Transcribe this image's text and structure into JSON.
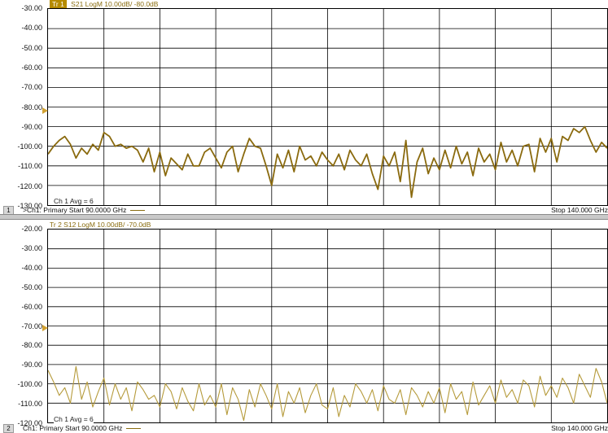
{
  "window": {
    "panes": [
      {
        "number": "1",
        "trace_badge": "Tr 1",
        "trace_label": "S21 LogM 10.00dB/ -80.0dB",
        "y_ticks": [
          "-30.00",
          "-40.00",
          "-50.00",
          "-60.00",
          "-70.00",
          "-80.00",
          "-90.00",
          "-100.00",
          "-110.00",
          "-120.00",
          "-130.00"
        ],
        "reference_marker_value": "-80.00",
        "avg_label": "Ch 1 Avg =",
        "avg_value": "6",
        "channel_info": ">Ch1: Primary  Start  90.0000 GHz",
        "stop_label": "Stop  140.000 GHz"
      },
      {
        "number": "2",
        "trace_badge": "Tr  2",
        "trace_label": "S12 LogM 10.00dB/ -70.0dB",
        "y_ticks": [
          "-20.00",
          "-30.00",
          "-40.00",
          "-50.00",
          "-60.00",
          "-70.00",
          "-80.00",
          "-90.00",
          "-100.00",
          "-110.00",
          "-120.00"
        ],
        "reference_marker_value": "-70.00",
        "avg_label": "Ch 1 Avg =",
        "avg_value": "6",
        "channel_info": "Ch1: Primary  Start  90.0000 GHz",
        "stop_label": "Stop  140.000 GHz"
      }
    ],
    "colors": {
      "trace1": "#8a6a0e",
      "trace2": "#b59a3a",
      "marker": "#d2a233",
      "grid": "#000000"
    }
  },
  "chart_data": [
    {
      "type": "line",
      "title": "S21 LogM 10.00dB/ -80.0dB",
      "x_start_ghz": 90,
      "x_stop_ghz": 140,
      "ylim": [
        -130,
        -30
      ],
      "y_div_db": 10,
      "grid": true,
      "series": [
        {
          "name": "S21",
          "x_ghz": [
            90.0,
            90.5,
            91.0,
            91.5,
            92.0,
            92.5,
            93.0,
            93.5,
            94.0,
            94.5,
            95.0,
            95.5,
            96.0,
            96.5,
            97.0,
            97.5,
            98.0,
            98.5,
            99.0,
            99.5,
            100.0,
            100.5,
            101.0,
            101.5,
            102.0,
            102.5,
            103.0,
            103.5,
            104.0,
            104.5,
            105.0,
            105.5,
            106.0,
            106.5,
            107.0,
            107.5,
            108.0,
            108.5,
            109.0,
            109.5,
            110.0,
            110.5,
            111.0,
            111.5,
            112.0,
            112.5,
            113.0,
            113.5,
            114.0,
            114.5,
            115.0,
            115.5,
            116.0,
            116.5,
            117.0,
            117.5,
            118.0,
            118.5,
            119.0,
            119.5,
            120.0,
            120.5,
            121.0,
            121.5,
            122.0,
            122.5,
            123.0,
            123.5,
            124.0,
            124.5,
            125.0,
            125.5,
            126.0,
            126.5,
            127.0,
            127.5,
            128.0,
            128.5,
            129.0,
            129.5,
            130.0,
            130.5,
            131.0,
            131.5,
            132.0,
            132.5,
            133.0,
            133.5,
            134.0,
            134.5,
            135.0,
            135.5,
            136.0,
            136.5,
            137.0,
            137.5,
            138.0,
            138.5,
            139.0,
            139.5,
            140.0
          ],
          "y_db": [
            -104,
            -100,
            -97,
            -95,
            -99,
            -106,
            -101,
            -104,
            -99,
            -102,
            -93,
            -95,
            -100,
            -99,
            -101,
            -100,
            -102,
            -108,
            -101,
            -113,
            -103,
            -115,
            -106,
            -109,
            -112,
            -104,
            -110,
            -110,
            -103,
            -101,
            -106,
            -111,
            -103,
            -100,
            -113,
            -104,
            -96,
            -100,
            -101,
            -110,
            -120,
            -104,
            -111,
            -102,
            -113,
            -100,
            -107,
            -105,
            -110,
            -103,
            -107,
            -110,
            -104,
            -112,
            -102,
            -107,
            -110,
            -104,
            -114,
            -122,
            -105,
            -110,
            -103,
            -118,
            -97,
            -126,
            -108,
            -101,
            -114,
            -106,
            -112,
            -102,
            -111,
            -100,
            -109,
            -103,
            -115,
            -101,
            -108,
            -104,
            -112,
            -98,
            -108,
            -102,
            -110,
            -100,
            -99,
            -113,
            -96,
            -103,
            -96,
            -108,
            -95,
            -97,
            -91,
            -93,
            -90,
            -97,
            -103,
            -98,
            -101
          ]
        }
      ]
    },
    {
      "type": "line",
      "title": "S12 LogM 10.00dB/ -70.0dB",
      "x_start_ghz": 90,
      "x_stop_ghz": 140,
      "ylim": [
        -120,
        -20
      ],
      "y_div_db": 10,
      "grid": true,
      "series": [
        {
          "name": "S12",
          "x_ghz": [
            90.0,
            90.5,
            91.0,
            91.5,
            92.0,
            92.5,
            93.0,
            93.5,
            94.0,
            94.5,
            95.0,
            95.5,
            96.0,
            96.5,
            97.0,
            97.5,
            98.0,
            98.5,
            99.0,
            99.5,
            100.0,
            100.5,
            101.0,
            101.5,
            102.0,
            102.5,
            103.0,
            103.5,
            104.0,
            104.5,
            105.0,
            105.5,
            106.0,
            106.5,
            107.0,
            107.5,
            108.0,
            108.5,
            109.0,
            109.5,
            110.0,
            110.5,
            111.0,
            111.5,
            112.0,
            112.5,
            113.0,
            113.5,
            114.0,
            114.5,
            115.0,
            115.5,
            116.0,
            116.5,
            117.0,
            117.5,
            118.0,
            118.5,
            119.0,
            119.5,
            120.0,
            120.5,
            121.0,
            121.5,
            122.0,
            122.5,
            123.0,
            123.5,
            124.0,
            124.5,
            125.0,
            125.5,
            126.0,
            126.5,
            127.0,
            127.5,
            128.0,
            128.5,
            129.0,
            129.5,
            130.0,
            130.5,
            131.0,
            131.5,
            132.0,
            132.5,
            133.0,
            133.5,
            134.0,
            134.5,
            135.0,
            135.5,
            136.0,
            136.5,
            137.0,
            137.5,
            138.0,
            138.5,
            139.0,
            139.5,
            140.0
          ],
          "y_db": [
            -93,
            -99,
            -106,
            -102,
            -110,
            -91,
            -108,
            -99,
            -112,
            -104,
            -97,
            -111,
            -100,
            -108,
            -102,
            -114,
            -99,
            -103,
            -108,
            -106,
            -112,
            -100,
            -104,
            -113,
            -102,
            -109,
            -114,
            -100,
            -111,
            -106,
            -112,
            -100,
            -116,
            -102,
            -108,
            -119,
            -103,
            -112,
            -100,
            -106,
            -113,
            -100,
            -117,
            -104,
            -110,
            -102,
            -115,
            -106,
            -100,
            -111,
            -113,
            -102,
            -117,
            -106,
            -112,
            -100,
            -104,
            -110,
            -103,
            -114,
            -101,
            -108,
            -110,
            -103,
            -116,
            -102,
            -106,
            -112,
            -104,
            -110,
            -102,
            -115,
            -100,
            -108,
            -104,
            -116,
            -99,
            -111,
            -106,
            -101,
            -110,
            -98,
            -107,
            -103,
            -110,
            -98,
            -101,
            -112,
            -96,
            -106,
            -101,
            -107,
            -97,
            -102,
            -110,
            -95,
            -101,
            -107,
            -92,
            -99,
            -110
          ]
        }
      ]
    }
  ]
}
